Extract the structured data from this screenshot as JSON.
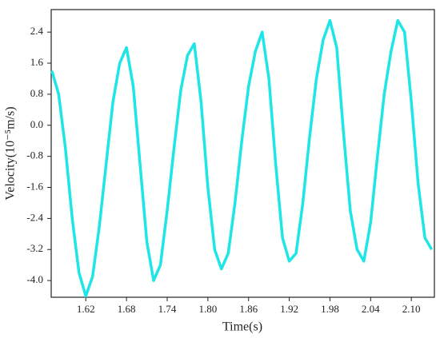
{
  "chart_data": {
    "type": "line",
    "x_label": "Time(s)",
    "y_label": "Velocity(10⁻⁵m/s)",
    "x": [
      1.57,
      1.58,
      1.59,
      1.6,
      1.61,
      1.62,
      1.63,
      1.64,
      1.65,
      1.66,
      1.67,
      1.68,
      1.69,
      1.7,
      1.71,
      1.72,
      1.73,
      1.74,
      1.75,
      1.76,
      1.77,
      1.78,
      1.79,
      1.8,
      1.81,
      1.82,
      1.83,
      1.84,
      1.85,
      1.86,
      1.87,
      1.88,
      1.89,
      1.9,
      1.91,
      1.92,
      1.93,
      1.94,
      1.95,
      1.96,
      1.97,
      1.98,
      1.99,
      2.0,
      2.01,
      2.02,
      2.03,
      2.04,
      2.05,
      2.06,
      2.07,
      2.08,
      2.09,
      2.1,
      2.11,
      2.12,
      2.13
    ],
    "series": [
      {
        "color": "#1ee6e6",
        "values": [
          1.4,
          0.8,
          -0.6,
          -2.4,
          -3.8,
          -4.4,
          -3.9,
          -2.6,
          -1.0,
          0.6,
          1.6,
          2.0,
          1.0,
          -1.0,
          -3.0,
          -4.0,
          -3.6,
          -2.2,
          -0.6,
          0.9,
          1.8,
          2.1,
          0.6,
          -1.6,
          -3.2,
          -3.7,
          -3.3,
          -2.0,
          -0.4,
          1.0,
          1.9,
          2.4,
          1.2,
          -1.0,
          -2.9,
          -3.5,
          -3.3,
          -2.0,
          -0.3,
          1.2,
          2.2,
          2.7,
          2.0,
          -0.2,
          -2.2,
          -3.2,
          -3.5,
          -2.5,
          -0.8,
          0.8,
          1.9,
          2.7,
          2.4,
          0.6,
          -1.5,
          -2.9,
          -3.2
        ]
      }
    ],
    "xlim": [
      1.569,
      2.134
    ],
    "xticks": [
      1.62,
      1.68,
      1.74,
      {
        "value": 1.8,
        "label": "1.80"
      },
      1.86,
      1.92,
      1.98,
      2.04,
      {
        "value": 2.1,
        "label": "2.10"
      }
    ],
    "ylim": [
      -4.43,
      2.98
    ],
    "yticks": [
      2.4,
      1.6,
      0.8,
      {
        "value": 0,
        "label": "0.0"
      },
      -0.8,
      -1.6,
      -2.4,
      -3.2,
      {
        "value": -4,
        "label": "-4.0"
      }
    ]
  }
}
